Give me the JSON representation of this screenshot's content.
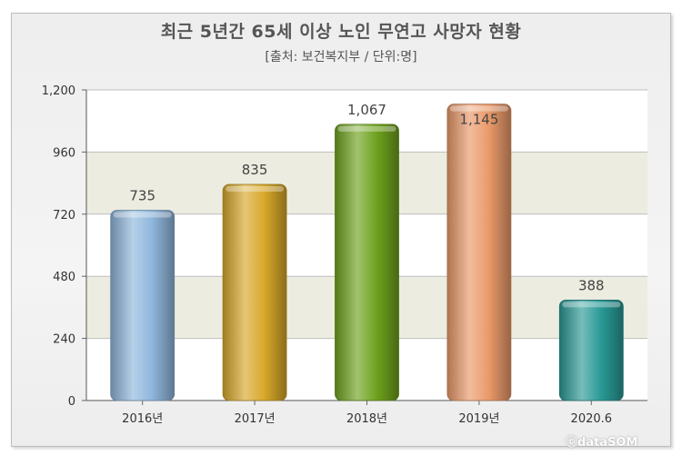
{
  "title": "최근 5년간 65세 이상 노인 무연고 사망자 현황",
  "subtitle": "[출처: 보건복지부 / 단위:명]",
  "watermark": "ⓒdataSOM",
  "colors": {
    "bars": [
      "#8fb7dc",
      "#d8a82a",
      "#6fa21e",
      "#ea9a6a",
      "#2a9a96"
    ],
    "band": "#ecece0",
    "plot_bg": "#ffffff"
  },
  "chart_data": {
    "type": "bar",
    "title": "최근 5년간 65세 이상 노인 무연고 사망자 현황",
    "subtitle": "[출처: 보건복지부 / 단위:명]",
    "categories": [
      "2016년",
      "2017년",
      "2018년",
      "2019년",
      "2020.6"
    ],
    "values": [
      735,
      835,
      1067,
      1145,
      388
    ],
    "value_labels": [
      "735",
      "835",
      "1,067",
      "1,145",
      "388"
    ],
    "yticks": [
      0,
      240,
      480,
      720,
      960,
      1200
    ],
    "ytick_labels": [
      "0",
      "240",
      "480",
      "720",
      "960",
      "1,200"
    ],
    "ylim": [
      0,
      1200
    ],
    "grid": true,
    "xlabel": "",
    "ylabel": ""
  }
}
